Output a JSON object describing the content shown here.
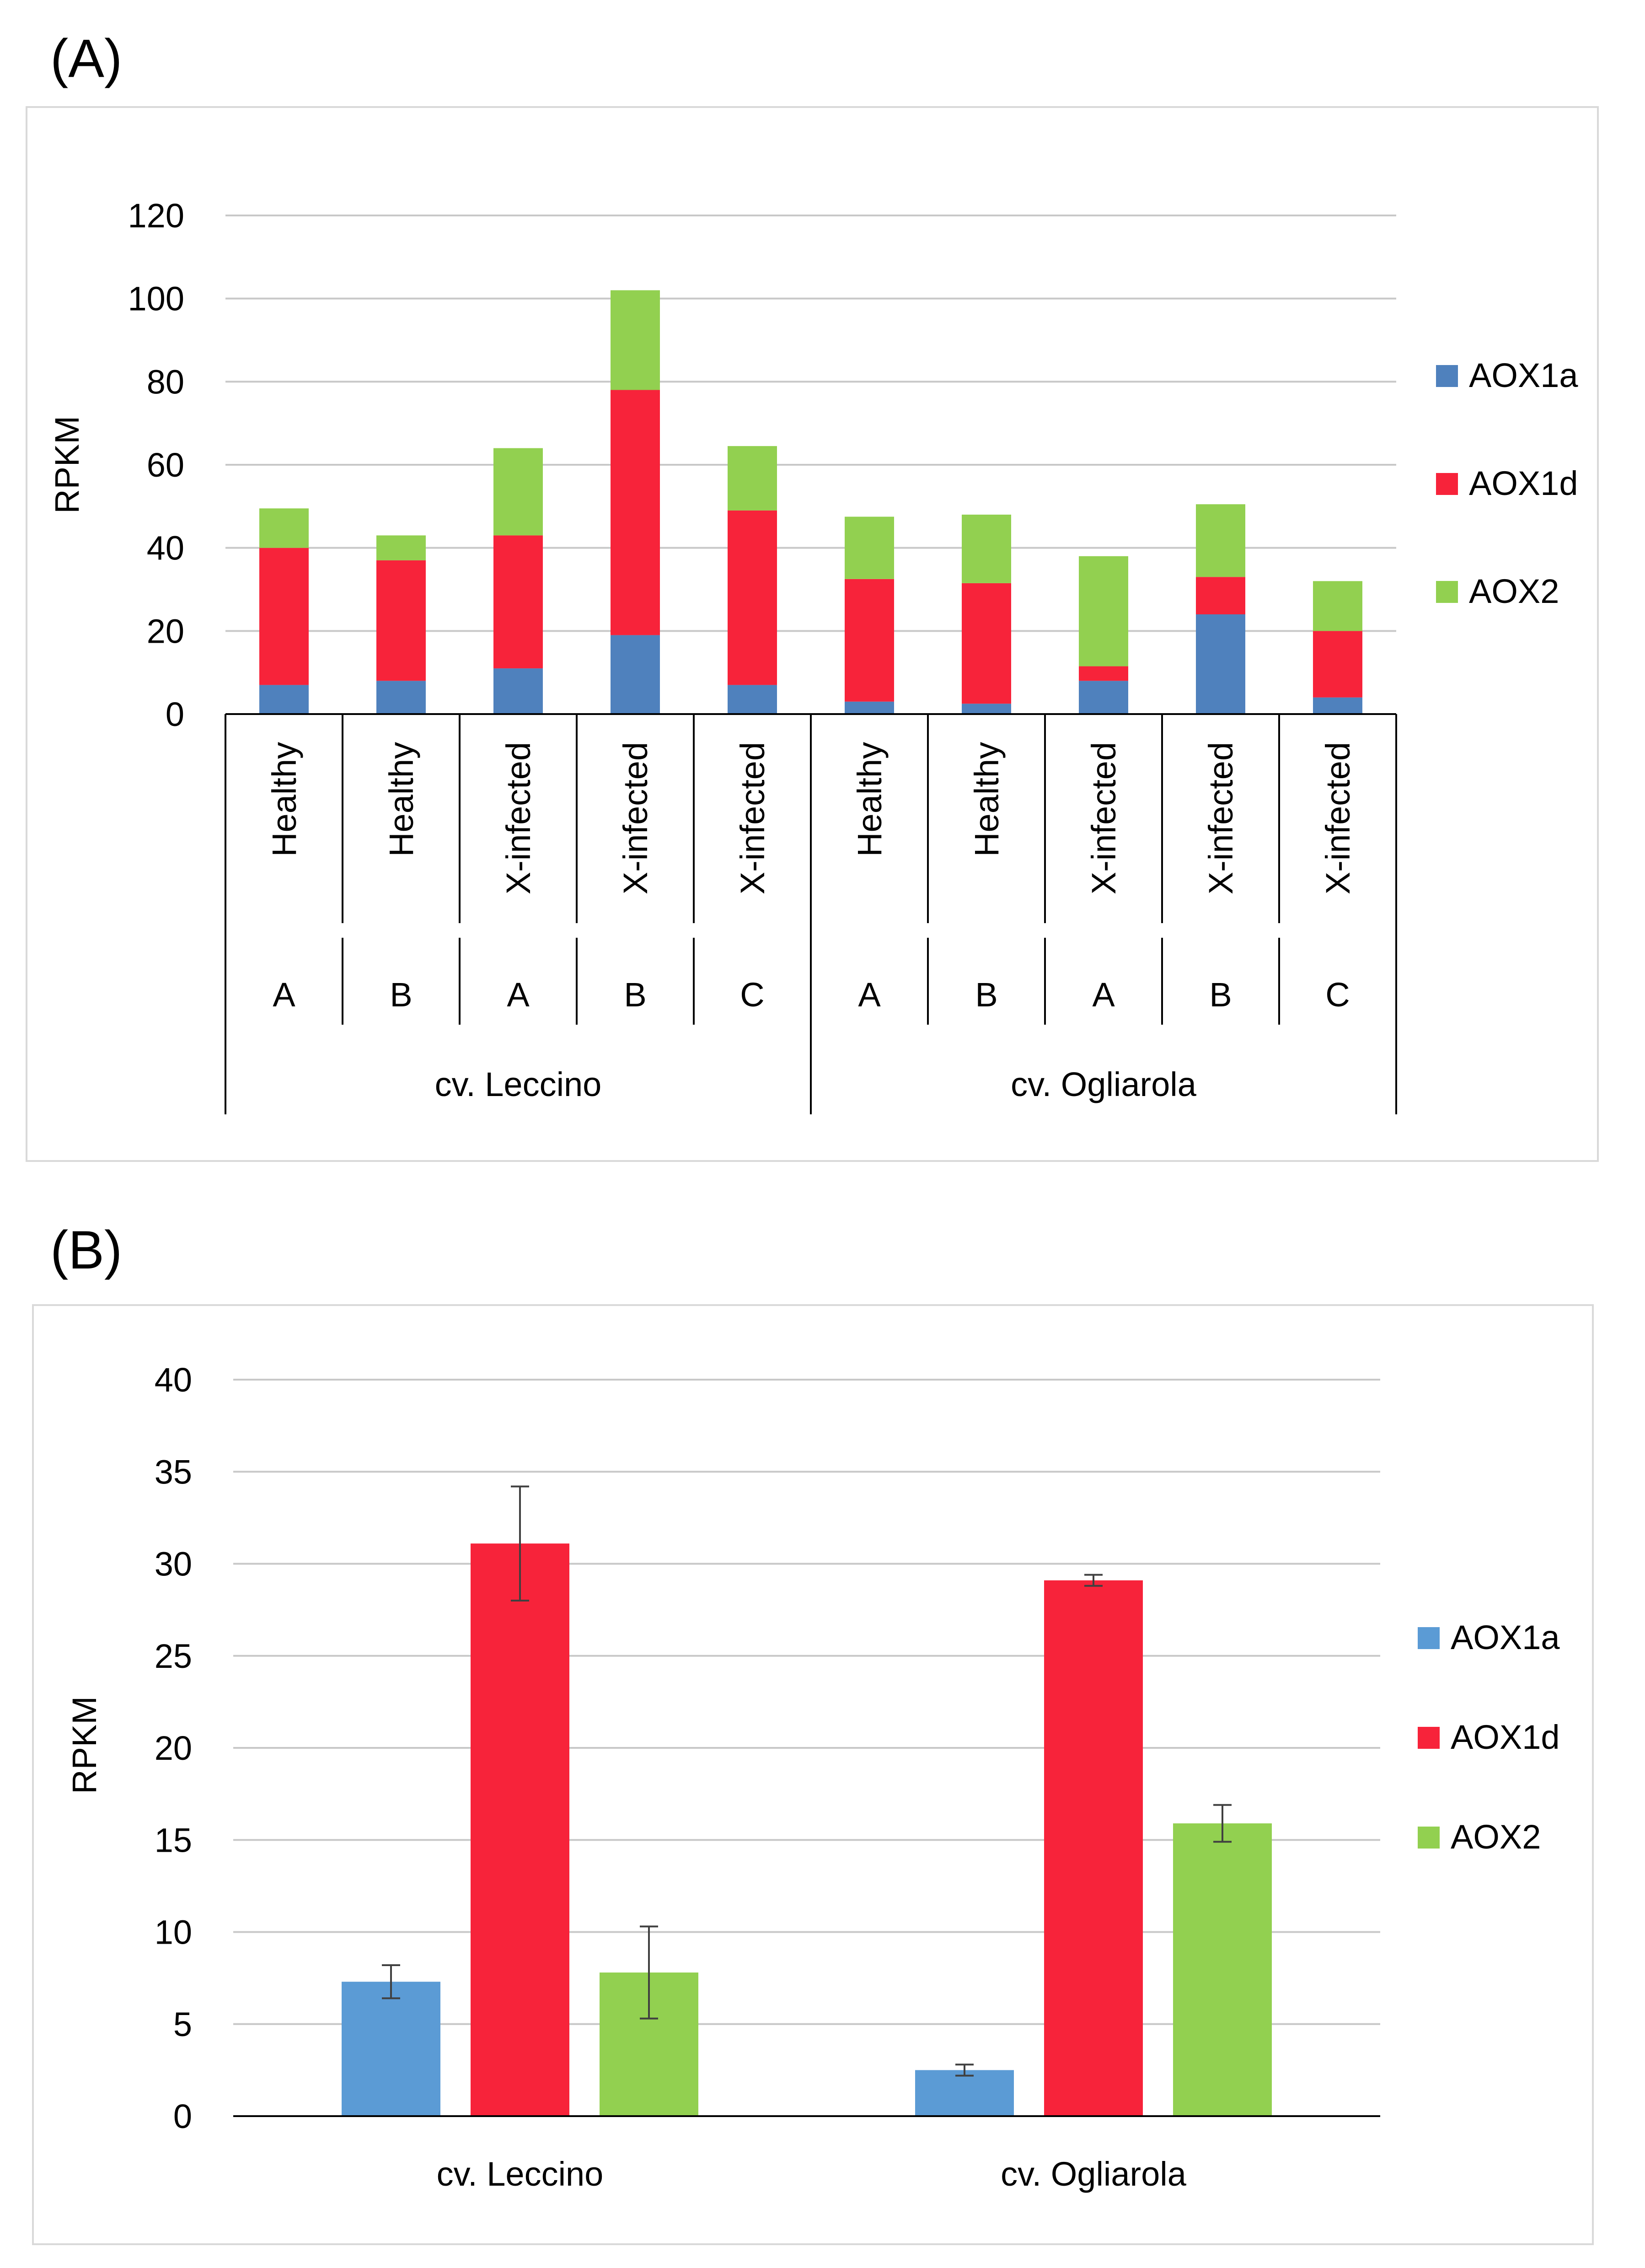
{
  "panels": {
    "a": {
      "label": "(A)"
    },
    "b": {
      "label": "(B)"
    }
  },
  "chart_data": [
    {
      "id": "A",
      "type": "bar",
      "stacked": true,
      "ylabel": "RPKM",
      "ylim": [
        0,
        120
      ],
      "yticks": [
        "0",
        "20",
        "40",
        "60",
        "80",
        "100",
        "120"
      ],
      "grid": true,
      "legend_position": "right",
      "categories": [
        {
          "condition": "Healthy",
          "sample": "A",
          "cultivar": "cv. Leccino"
        },
        {
          "condition": "Healthy",
          "sample": "B",
          "cultivar": "cv. Leccino"
        },
        {
          "condition": "X-infected",
          "sample": "A",
          "cultivar": "cv. Leccino"
        },
        {
          "condition": "X-infected",
          "sample": "B",
          "cultivar": "cv. Leccino"
        },
        {
          "condition": "X-infected",
          "sample": "C",
          "cultivar": "cv. Leccino"
        },
        {
          "condition": "Healthy",
          "sample": "A",
          "cultivar": "cv. Ogliarola"
        },
        {
          "condition": "Healthy",
          "sample": "B",
          "cultivar": "cv. Ogliarola"
        },
        {
          "condition": "X-infected",
          "sample": "A",
          "cultivar": "cv. Ogliarola"
        },
        {
          "condition": "X-infected",
          "sample": "B",
          "cultivar": "cv. Ogliarola"
        },
        {
          "condition": "X-infected",
          "sample": "C",
          "cultivar": "cv. Ogliarola"
        }
      ],
      "groups": [
        "cv. Leccino",
        "cv. Ogliarola"
      ],
      "series": [
        {
          "name": "AOX1a",
          "color": "#4f81bd",
          "values": [
            7,
            8,
            11,
            19,
            7,
            3,
            2.5,
            8,
            24,
            4
          ]
        },
        {
          "name": "AOX1d",
          "color": "#f7233a",
          "values": [
            33,
            29,
            32,
            59,
            42,
            29.5,
            29,
            3.5,
            9,
            16
          ]
        },
        {
          "name": "AOX2",
          "color": "#92d050",
          "values": [
            9.5,
            6,
            21,
            24,
            15.5,
            15,
            16.5,
            26.5,
            17.5,
            12
          ]
        }
      ]
    },
    {
      "id": "B",
      "type": "bar",
      "stacked": false,
      "ylabel": "RPKM",
      "ylim": [
        0,
        40
      ],
      "yticks": [
        "0",
        "5",
        "10",
        "15",
        "20",
        "25",
        "30",
        "35",
        "40"
      ],
      "grid": true,
      "legend_position": "right",
      "categories": [
        "cv. Leccino",
        "cv. Ogliarola"
      ],
      "series": [
        {
          "name": "AOX1a",
          "color": "#5b9bd5",
          "values": [
            7.3,
            2.5
          ],
          "errors": [
            0.9,
            0.3
          ]
        },
        {
          "name": "AOX1d",
          "color": "#f7233a",
          "values": [
            31.1,
            29.1
          ],
          "errors": [
            3.1,
            0.3
          ]
        },
        {
          "name": "AOX2",
          "color": "#92d050",
          "values": [
            7.8,
            15.9
          ],
          "errors": [
            2.5,
            1.0
          ]
        }
      ]
    }
  ]
}
